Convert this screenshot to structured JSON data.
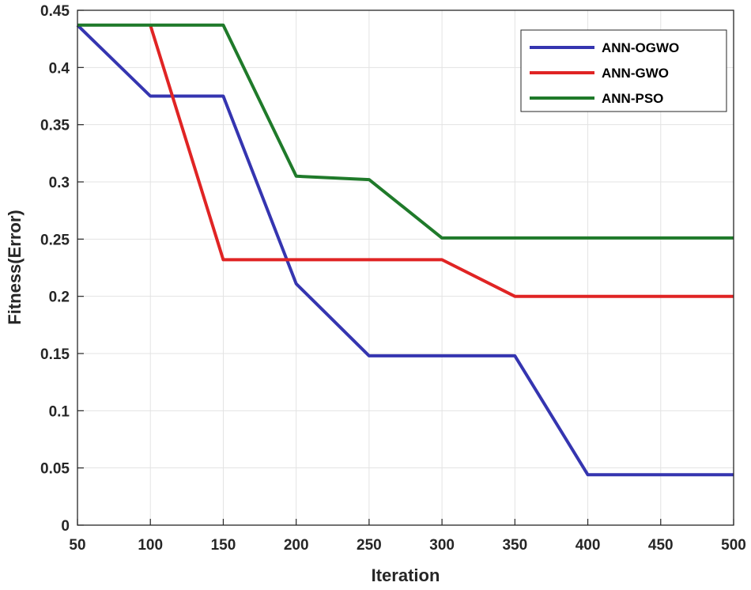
{
  "chart_data": {
    "type": "line",
    "title": "",
    "xlabel": "Iteration",
    "ylabel": "Fitness(Error)",
    "xlim": [
      50,
      500
    ],
    "ylim": [
      0,
      0.45
    ],
    "grid": true,
    "legend_position": "top-right",
    "x_ticks": [
      "50",
      "100",
      "150",
      "200",
      "250",
      "300",
      "350",
      "400",
      "450",
      "500"
    ],
    "y_ticks": [
      "0",
      "0.05",
      "0.1",
      "0.15",
      "0.2",
      "0.25",
      "0.3",
      "0.35",
      "0.4",
      "0.45"
    ],
    "series": [
      {
        "name": "ANN-OGWO",
        "color": "#3535b0",
        "x": [
          50,
          100,
          150,
          200,
          250,
          300,
          350,
          400,
          450,
          500
        ],
        "values": [
          0.437,
          0.375,
          0.375,
          0.211,
          0.148,
          0.148,
          0.148,
          0.044,
          0.044,
          0.044
        ]
      },
      {
        "name": "ANN-GWO",
        "color": "#e02424",
        "x": [
          100,
          150,
          200,
          250,
          300,
          350,
          400,
          450,
          500
        ],
        "values": [
          0.437,
          0.232,
          0.232,
          0.232,
          0.232,
          0.2,
          0.2,
          0.2,
          0.2
        ]
      },
      {
        "name": "ANN-PSO",
        "color": "#1f7a2a",
        "x": [
          50,
          100,
          150,
          200,
          250,
          300,
          350,
          400,
          450,
          500
        ],
        "values": [
          0.437,
          0.437,
          0.437,
          0.305,
          0.302,
          0.251,
          0.251,
          0.251,
          0.251,
          0.251
        ]
      }
    ]
  }
}
